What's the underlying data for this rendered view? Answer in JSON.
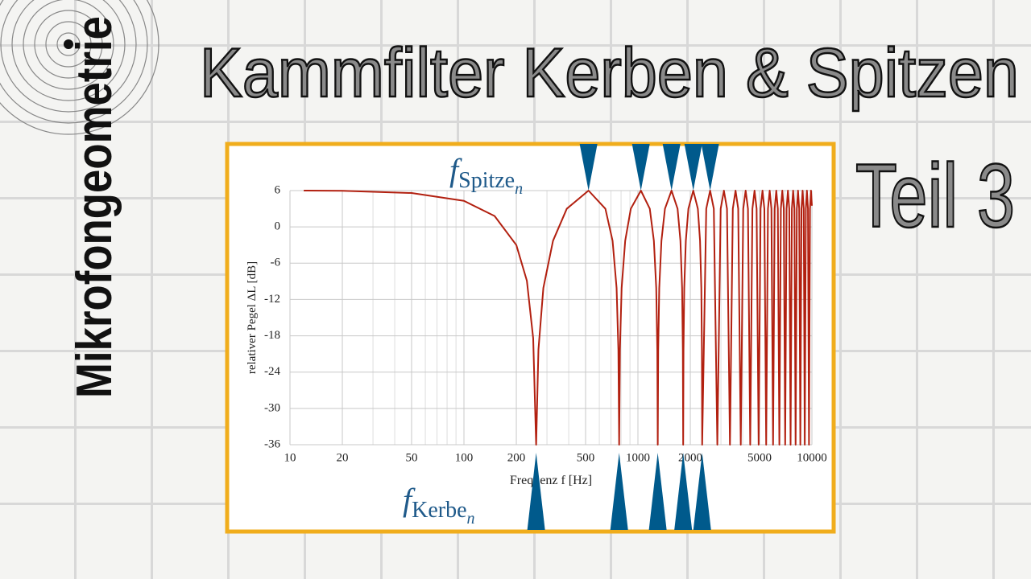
{
  "channel": "Mikrofongeometrie",
  "chart_data": {
    "type": "line",
    "title": "Kammfilter Kerben & Spitzen",
    "subtitle": "Teil 3",
    "x_label": "Frequenz f [Hz]",
    "y_label": "relativer Pegel ΔL [dB]",
    "peak_label": {
      "symbol": "f",
      "subscript": "Spitze",
      "index": "n"
    },
    "notch_label": {
      "symbol": "f",
      "subscript": "Kerbe",
      "index": "n"
    },
    "log_x": true,
    "grid": true,
    "color": "#b22010",
    "marker_color": "#005a8c",
    "xlim": [
      10,
      10000
    ],
    "ylim": [
      -36,
      6
    ],
    "xticks": [
      10,
      20,
      50,
      100,
      200,
      500,
      1000,
      2000,
      5000,
      10000
    ],
    "x_minor_grid": [
      30,
      40,
      60,
      70,
      80,
      90,
      300,
      400,
      600,
      700,
      800,
      900,
      3000,
      4000,
      6000,
      7000,
      8000,
      9000
    ],
    "yticks": [
      -36,
      -30,
      -24,
      -18,
      -12,
      -6,
      0,
      6
    ],
    "peak_markers": [
      520,
      1040,
      1560,
      2080,
      2600
    ],
    "notch_markers": [
      260,
      780,
      1300,
      1820,
      2340
    ],
    "x": [
      12,
      20,
      50,
      100,
      150,
      200,
      230,
      250,
      260,
      268,
      286,
      325,
      390,
      520,
      650,
      715,
      754,
      772,
      780,
      788,
      806,
      845,
      910,
      1040,
      1170,
      1235,
      1274,
      1292,
      1300,
      1308,
      1326,
      1365,
      1430,
      1560,
      1690,
      1755,
      1794,
      1812,
      1820,
      1828,
      1846,
      1885,
      1950,
      2080,
      2210,
      2275,
      2314,
      2332,
      2340,
      2470,
      2600,
      2730,
      2860,
      2990,
      3120,
      3250,
      3380,
      3510,
      3640,
      3770,
      3900,
      4030,
      4160,
      4290,
      4420,
      4550,
      4680,
      4810,
      4940,
      5070,
      5200,
      5330,
      5460,
      5590,
      5720,
      5850,
      5980,
      6110,
      6240,
      6370,
      6500,
      6630,
      6760,
      6890,
      7020,
      7150,
      7280,
      7410,
      7540,
      7670,
      7800,
      7930,
      8060,
      8190,
      8320,
      8450,
      8580,
      8710,
      8840,
      8970,
      9100,
      9230,
      9360,
      9490,
      9620,
      9750,
      9880,
      10000
    ],
    "values": [
      6.0,
      5.96,
      5.6,
      4.3,
      1.8,
      -3.0,
      -8.9,
      -18.4,
      -36,
      -20.3,
      -10.1,
      -2.3,
      3,
      6,
      3,
      -2.3,
      -10.1,
      -20.3,
      -36,
      -20.3,
      -10.1,
      -2.3,
      3,
      6,
      3,
      -2.3,
      -10.1,
      -20.3,
      -36,
      -20.3,
      -10.1,
      -2.3,
      3,
      6,
      3,
      -2.3,
      -10.1,
      -20.3,
      -36,
      -20.3,
      -10.1,
      -2.3,
      3,
      6,
      3,
      -2.3,
      -10.1,
      -20.3,
      -36,
      3,
      6,
      3,
      -36,
      3,
      6,
      3,
      -36,
      3,
      6,
      3,
      -36,
      3,
      6,
      3,
      -36,
      3,
      6,
      3,
      -36,
      3,
      6,
      3,
      -36,
      3,
      6,
      3,
      -36,
      3,
      6,
      3,
      -36,
      3,
      6,
      3,
      -36,
      3,
      6,
      3,
      -36,
      3,
      6,
      3,
      -36,
      3,
      6,
      3,
      -36,
      3,
      6,
      3,
      -36,
      3,
      6,
      3,
      -36,
      3,
      6,
      3.5
    ]
  }
}
